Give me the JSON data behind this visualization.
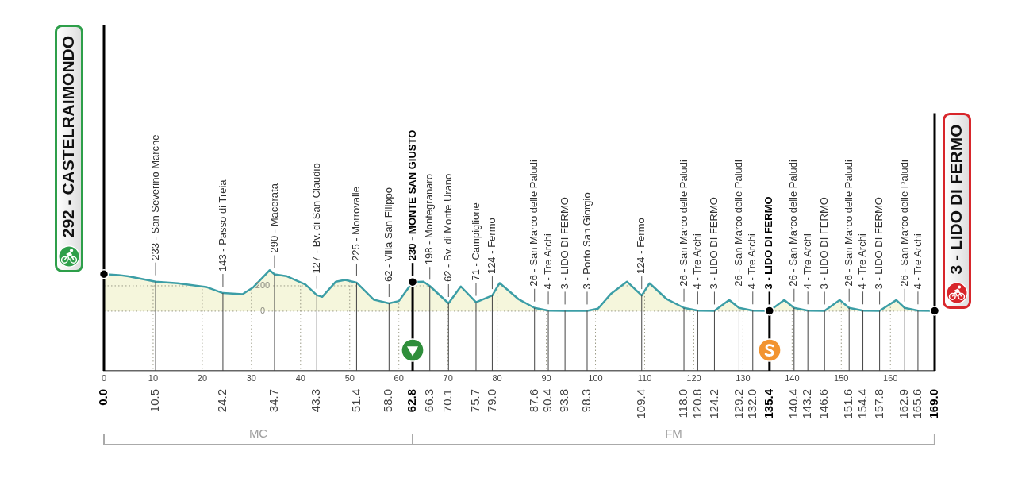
{
  "chart_data": {
    "type": "area",
    "xlim": [
      0,
      169
    ],
    "xticks": [
      0,
      10,
      20,
      30,
      40,
      50,
      60,
      70,
      80,
      90,
      100,
      110,
      120,
      130,
      140,
      150,
      160
    ],
    "ylim": [
      -470,
      400
    ],
    "yticks": [
      0,
      200
    ],
    "grid": true,
    "series": [
      {
        "color": "#3c9ea6",
        "x": [
          0,
          3,
          5,
          10.5,
          15,
          20.9,
          24.2,
          28.2,
          30.4,
          33.7,
          34.7,
          37.1,
          41,
          43.3,
          44.4,
          47.2,
          49.1,
          51.4,
          54.9,
          58,
          60,
          62.8,
          65,
          66.3,
          70.1,
          72.6,
          75.7,
          79,
          80.5,
          84.3,
          87.6,
          90.4,
          93.8,
          98.3,
          100.5,
          103.2,
          106.4,
          109.4,
          111,
          114.5,
          118,
          120.8,
          124.2,
          127.2,
          129.2,
          132,
          135.4,
          138.4,
          140.4,
          143.2,
          146.6,
          149.7,
          151.6,
          154.4,
          157.8,
          161.2,
          162.9,
          165.6,
          169
        ],
        "values": [
          292,
          285,
          275,
          233,
          220,
          190,
          143,
          134,
          189,
          323,
          290,
          277,
          210,
          127,
          113,
          233,
          247,
          225,
          91,
          62,
          80,
          230,
          233,
          198,
          62,
          195,
          71,
          124,
          222,
          96,
          26,
          4,
          3,
          3,
          20,
          139,
          233,
          124,
          220,
          95,
          26,
          4,
          3,
          88,
          26,
          4,
          3,
          88,
          26,
          4,
          3,
          88,
          26,
          4,
          3,
          88,
          26,
          4,
          3
        ]
      },
      {
        "type": "scatter",
        "color": "#000000",
        "marker": "circle",
        "x": [
          0,
          62.8,
          135.4,
          169
        ],
        "values": [
          292,
          230,
          3,
          3
        ]
      }
    ],
    "annotations": [
      {
        "text": "292 - CASTELRAIMONDO",
        "x": 0,
        "y": 292
      },
      {
        "text": "233 - San Severino Marche",
        "x": 10.5,
        "y": 233
      },
      {
        "text": "143 - Passo di Treia",
        "x": 24.2,
        "y": 143
      },
      {
        "text": "290 - Macerata",
        "x": 34.7,
        "y": 290
      },
      {
        "text": "127 - Bv. di San Claudio",
        "x": 43.3,
        "y": 127
      },
      {
        "text": "225 - Morrovalle",
        "x": 51.4,
        "y": 225
      },
      {
        "text": "62 - Villa San Filippo",
        "x": 58,
        "y": 62
      },
      {
        "text": "230 - MONTE SAN GIUSTO",
        "x": 62.8,
        "y": 230
      },
      {
        "text": "198 - Montegranaro",
        "x": 66.3,
        "y": 198
      },
      {
        "text": "62 - Bv. di Monte Urano",
        "x": 70.1,
        "y": 62
      },
      {
        "text": "71 - Campiglione",
        "x": 75.7,
        "y": 71
      },
      {
        "text": "124 - Fermo",
        "x": 79,
        "y": 124
      },
      {
        "text": "26 - San Marco delle Paludi",
        "x": 87.6,
        "y": 26
      },
      {
        "text": "4 - Tre Archi",
        "x": 90.4,
        "y": 4
      },
      {
        "text": "3 - LIDO DI FERMO",
        "x": 93.8,
        "y": 3
      },
      {
        "text": "3 - Porto San Giorgio",
        "x": 98.3,
        "y": 3
      },
      {
        "text": "124 - Fermo",
        "x": 109.4,
        "y": 124
      },
      {
        "text": "26 - San Marco delle Paludi",
        "x": 118,
        "y": 26
      },
      {
        "text": "4 - Tre Archi",
        "x": 120.8,
        "y": 4
      },
      {
        "text": "3 - LIDO DI FERMO",
        "x": 124.2,
        "y": 3
      },
      {
        "text": "26 - San Marco delle Paludi",
        "x": 129.2,
        "y": 26
      },
      {
        "text": "4 - Tre Archi",
        "x": 132,
        "y": 4
      },
      {
        "text": "3 - LIDO DI FERMO",
        "x": 135.4,
        "y": 3
      },
      {
        "text": "26 - San Marco delle Paludi",
        "x": 140.4,
        "y": 26
      },
      {
        "text": "4 - Tre Archi",
        "x": 143.2,
        "y": 4
      },
      {
        "text": "3 - LIDO DI FERMO",
        "x": 146.6,
        "y": 3
      },
      {
        "text": "26 - San Marco delle Paludi",
        "x": 151.6,
        "y": 26
      },
      {
        "text": "4 - Tre Archi",
        "x": 154.4,
        "y": 4
      },
      {
        "text": "3 - LIDO DI FERMO",
        "x": 157.8,
        "y": 3
      },
      {
        "text": "26 - San Marco delle Paludi",
        "x": 162.9,
        "y": 26
      },
      {
        "text": "4 - Tre Archi",
        "x": 165.6,
        "y": 4
      },
      {
        "text": "3 - LIDO DI FERMO",
        "x": 169,
        "y": 3
      },
      "MC",
      "FM"
    ],
    "ref_lines": [
      {
        "axis": "x",
        "value": 0,
        "label": "0.0",
        "color": "#000000"
      },
      {
        "axis": "x",
        "value": 10.5,
        "label": "10.5",
        "color": "#444444"
      },
      {
        "axis": "x",
        "value": 24.2,
        "label": "24.2",
        "color": "#444444"
      },
      {
        "axis": "x",
        "value": 34.7,
        "label": "34.7",
        "color": "#444444"
      },
      {
        "axis": "x",
        "value": 43.3,
        "label": "43.3",
        "color": "#444444"
      },
      {
        "axis": "x",
        "value": 51.4,
        "label": "51.4",
        "color": "#444444"
      },
      {
        "axis": "x",
        "value": 58,
        "label": "58.0",
        "color": "#444444"
      },
      {
        "axis": "x",
        "value": 62.8,
        "label": "62.8",
        "color": "#000000"
      },
      {
        "axis": "x",
        "value": 66.3,
        "label": "66.3",
        "color": "#444444"
      },
      {
        "axis": "x",
        "value": 70.1,
        "label": "70.1",
        "color": "#444444"
      },
      {
        "axis": "x",
        "value": 75.7,
        "label": "75.7",
        "color": "#444444"
      },
      {
        "axis": "x",
        "value": 79,
        "label": "79.0",
        "color": "#444444"
      },
      {
        "axis": "x",
        "value": 87.6,
        "label": "87.6",
        "color": "#444444"
      },
      {
        "axis": "x",
        "value": 90.4,
        "label": "90.4",
        "color": "#444444"
      },
      {
        "axis": "x",
        "value": 93.8,
        "label": "93.8",
        "color": "#444444"
      },
      {
        "axis": "x",
        "value": 98.3,
        "label": "98.3",
        "color": "#444444"
      },
      {
        "axis": "x",
        "value": 109.4,
        "label": "109.4",
        "color": "#444444"
      },
      {
        "axis": "x",
        "value": 118,
        "label": "118.0",
        "color": "#444444"
      },
      {
        "axis": "x",
        "value": 120.8,
        "label": "120.8",
        "color": "#444444"
      },
      {
        "axis": "x",
        "value": 124.2,
        "label": "124.2",
        "color": "#444444"
      },
      {
        "axis": "x",
        "value": 129.2,
        "label": "129.2",
        "color": "#444444"
      },
      {
        "axis": "x",
        "value": 132,
        "label": "132.0",
        "color": "#444444"
      },
      {
        "axis": "x",
        "value": 135.4,
        "label": "135.4",
        "color": "#000000"
      },
      {
        "axis": "x",
        "value": 140.4,
        "label": "140.4",
        "color": "#444444"
      },
      {
        "axis": "x",
        "value": 143.2,
        "label": "143.2",
        "color": "#444444"
      },
      {
        "axis": "x",
        "value": 146.6,
        "label": "146.6",
        "color": "#444444"
      },
      {
        "axis": "x",
        "value": 151.6,
        "label": "151.6",
        "color": "#444444"
      },
      {
        "axis": "x",
        "value": 154.4,
        "label": "154.4",
        "color": "#444444"
      },
      {
        "axis": "x",
        "value": 157.8,
        "label": "157.8",
        "color": "#444444"
      },
      {
        "axis": "x",
        "value": 162.9,
        "label": "162.9",
        "color": "#444444"
      },
      {
        "axis": "x",
        "value": 165.6,
        "label": "165.6",
        "color": "#444444"
      },
      {
        "axis": "x",
        "value": 169,
        "label": "169.0",
        "color": "#000000"
      }
    ]
  }
}
